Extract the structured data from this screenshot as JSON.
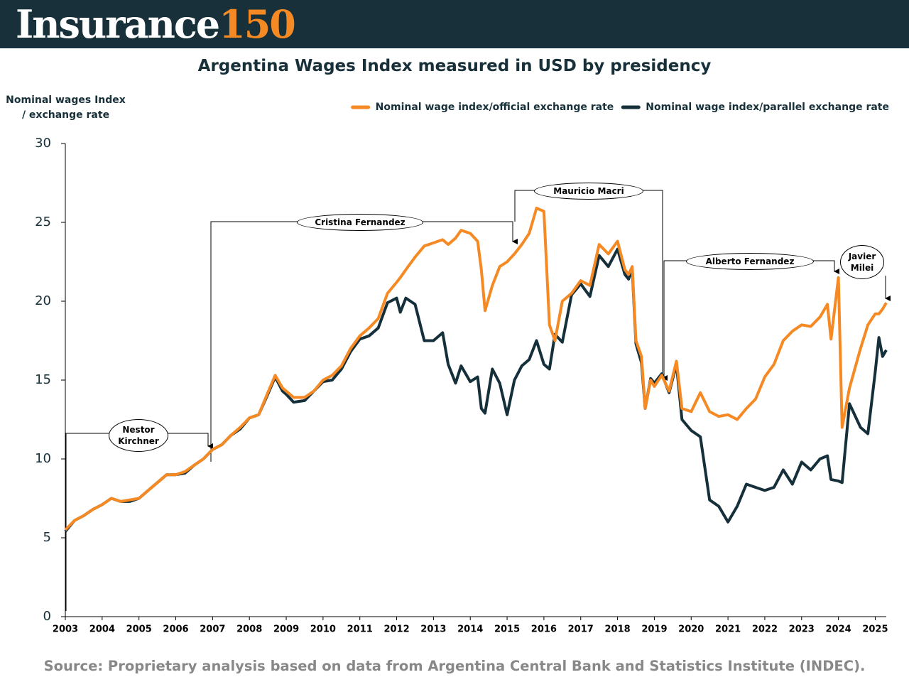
{
  "header": {
    "brand": "Insurance",
    "brand_number": "150"
  },
  "chart_data": {
    "type": "line",
    "title": "Argentina Wages Index measured in USD by presidency",
    "y_label": "Nominal wages Index / exchange rate",
    "source": "Source: Proprietary analysis based on data from Argentina Central Bank and Statistics Institute (INDEC).",
    "legend": "top-right",
    "grid": false,
    "xlim": [
      2003,
      2025.3
    ],
    "ylim": [
      0,
      30
    ],
    "xticks": [
      2003,
      2004,
      2005,
      2006,
      2007,
      2008,
      2009,
      2010,
      2011,
      2012,
      2013,
      2014,
      2015,
      2016,
      2017,
      2018,
      2019,
      2020,
      2021,
      2022,
      2023,
      2024,
      2025
    ],
    "yticks": [
      0,
      5,
      10,
      15,
      20,
      25,
      30
    ],
    "x": [
      2003,
      2003.25,
      2003.5,
      2003.75,
      2004,
      2004.25,
      2004.5,
      2004.75,
      2005,
      2005.25,
      2005.5,
      2005.75,
      2006,
      2006.25,
      2006.5,
      2006.75,
      2007,
      2007.25,
      2007.5,
      2007.75,
      2008,
      2008.25,
      2008.5,
      2008.7,
      2008.9,
      2009,
      2009.2,
      2009.5,
      2009.75,
      2010,
      2010.25,
      2010.5,
      2010.75,
      2011,
      2011.25,
      2011.5,
      2011.75,
      2012,
      2012.1,
      2012.25,
      2012.5,
      2012.75,
      2013,
      2013.25,
      2013.4,
      2013.6,
      2013.75,
      2014,
      2014.2,
      2014.3,
      2014.4,
      2014.6,
      2014.8,
      2015,
      2015.2,
      2015.4,
      2015.6,
      2015.8,
      2016,
      2016.15,
      2016.3,
      2016.5,
      2016.75,
      2017,
      2017.25,
      2017.5,
      2017.75,
      2018,
      2018.2,
      2018.3,
      2018.4,
      2018.5,
      2018.65,
      2018.75,
      2018.9,
      2019,
      2019.2,
      2019.4,
      2019.6,
      2019.75,
      2020,
      2020.25,
      2020.5,
      2020.75,
      2021,
      2021.25,
      2021.5,
      2021.75,
      2022,
      2022.25,
      2022.5,
      2022.75,
      2023,
      2023.25,
      2023.5,
      2023.7,
      2023.8,
      2024,
      2024.1,
      2024.3,
      2024.6,
      2024.8,
      2025,
      2025.1,
      2025.2,
      2025.3
    ],
    "series": [
      {
        "name": "Nominal wage index/official exchange rate",
        "color": "#f58a25",
        "values": [
          5.5,
          6.1,
          6.4,
          6.8,
          7.1,
          7.5,
          7.3,
          7.4,
          7.5,
          8.0,
          8.5,
          9.0,
          9.0,
          9.2,
          9.6,
          10.0,
          10.6,
          10.9,
          11.5,
          12.0,
          12.6,
          12.8,
          14.2,
          15.3,
          14.5,
          14.3,
          13.9,
          13.9,
          14.3,
          15.0,
          15.3,
          15.9,
          17.0,
          17.8,
          18.3,
          18.9,
          20.5,
          21.2,
          21.5,
          22.0,
          22.8,
          23.5,
          23.7,
          23.9,
          23.6,
          24.0,
          24.5,
          24.3,
          23.8,
          22.0,
          19.4,
          21.0,
          22.2,
          22.5,
          23.0,
          23.6,
          24.3,
          25.9,
          25.7,
          18.5,
          17.5,
          20.0,
          20.5,
          21.3,
          21.0,
          23.6,
          23.0,
          23.8,
          22.0,
          21.7,
          22.2,
          17.5,
          16.5,
          13.2,
          15.0,
          14.6,
          15.3,
          14.3,
          16.2,
          13.2,
          13.0,
          14.2,
          13.0,
          12.7,
          12.8,
          12.5,
          13.2,
          13.8,
          15.2,
          16.0,
          17.5,
          18.1,
          18.5,
          18.4,
          19.0,
          19.8,
          17.6,
          21.5,
          12.0,
          14.5,
          17.0,
          18.5,
          19.2,
          19.2,
          19.5,
          19.9
        ]
      },
      {
        "name": "Nominal wage index/parallel exchange rate",
        "color": "#15303a",
        "values": [
          5.4,
          6.1,
          6.4,
          6.8,
          7.1,
          7.5,
          7.3,
          7.3,
          7.5,
          8.0,
          8.5,
          9.0,
          9.0,
          9.1,
          9.6,
          10.0,
          10.6,
          10.9,
          11.5,
          11.9,
          12.6,
          12.8,
          14.1,
          15.2,
          14.3,
          14.1,
          13.6,
          13.7,
          14.3,
          14.9,
          15.0,
          15.7,
          16.8,
          17.6,
          17.8,
          18.3,
          19.9,
          20.2,
          19.3,
          20.2,
          19.8,
          17.5,
          17.5,
          18.0,
          16.0,
          14.8,
          15.9,
          14.9,
          15.2,
          13.2,
          12.9,
          15.7,
          14.8,
          12.8,
          15.0,
          15.9,
          16.3,
          17.5,
          16.0,
          15.7,
          17.9,
          17.4,
          20.4,
          21.1,
          20.3,
          22.9,
          22.2,
          23.3,
          21.7,
          21.4,
          22.0,
          17.3,
          16.1,
          13.2,
          15.1,
          14.8,
          15.4,
          14.2,
          16.0,
          12.5,
          11.8,
          11.4,
          7.4,
          7.0,
          6.0,
          7.0,
          8.4,
          8.2,
          8.0,
          8.2,
          9.3,
          8.4,
          9.8,
          9.3,
          10.0,
          10.2,
          8.7,
          8.6,
          8.5,
          13.5,
          12.0,
          11.6,
          15.5,
          17.7,
          16.5,
          16.9
        ]
      }
    ],
    "annotations": [
      "Nestor Kirchner",
      "Cristina Fernandez",
      "Mauricio Macri",
      "Alberto Fernandez",
      "Javier Milei"
    ]
  }
}
